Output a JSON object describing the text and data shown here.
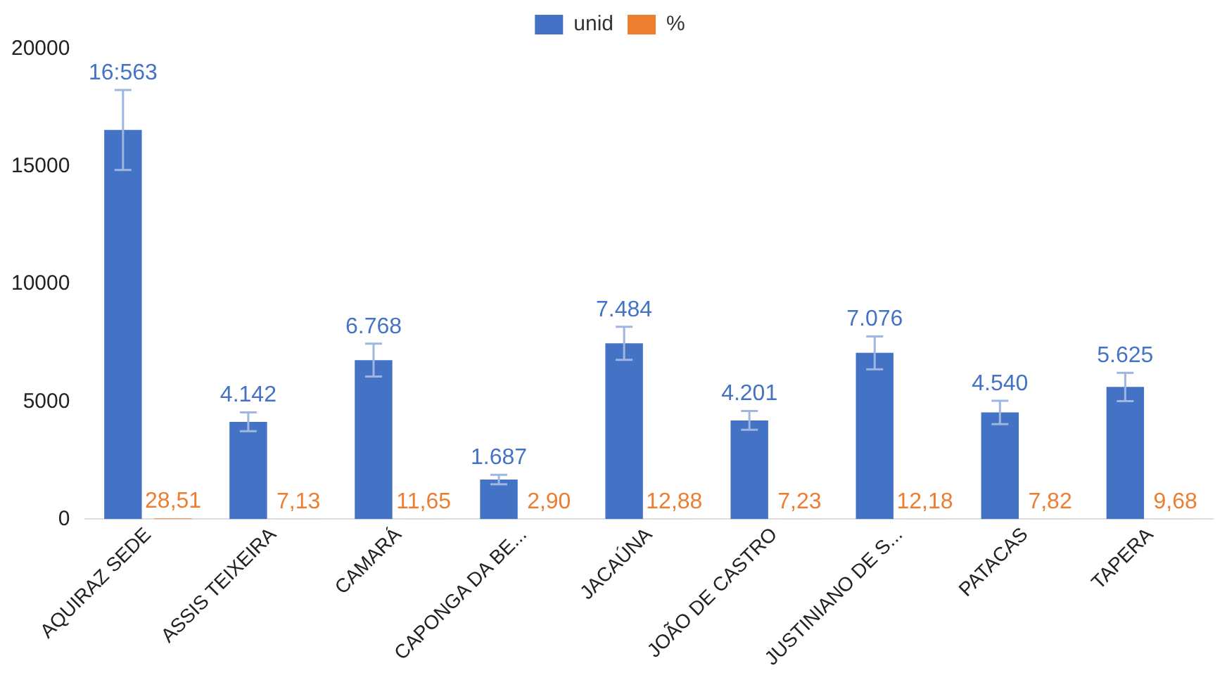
{
  "chart_data": {
    "type": "bar",
    "categories": [
      "AQUIRAZ SEDE",
      "ASSIS TEIXEIRA",
      "CAMARÁ",
      "CAPONGA DA BE...",
      "JACAÚNA",
      "JOÃO DE CASTRO",
      "JUSTINIANO DE S...",
      "PATACAS",
      "TAPERA"
    ],
    "series": [
      {
        "name": "unid",
        "color": "#4472c4",
        "values": [
          16563,
          4142,
          6768,
          1687,
          7484,
          4201,
          7076,
          4540,
          5625
        ],
        "errors": [
          1700,
          400,
          700,
          200,
          700,
          400,
          700,
          500,
          600
        ],
        "value_labels": [
          "16:563",
          "4.142",
          "6.768",
          "1.687",
          "7.484",
          "4.201",
          "7.076",
          "4.540",
          "5.625"
        ]
      },
      {
        "name": "%",
        "color": "#ed7d31",
        "values": [
          28.51,
          7.13,
          11.65,
          2.9,
          12.88,
          7.23,
          12.18,
          7.82,
          9.68
        ],
        "value_labels": [
          "28,51",
          "7,13",
          "11,65",
          "2,90",
          "12,88",
          "7,23",
          "12,18",
          "7,82",
          "9,68"
        ]
      }
    ],
    "ylim": [
      0,
      20000
    ],
    "yticks": [
      0,
      5000,
      10000,
      15000,
      20000
    ],
    "grid": false,
    "legend": "top"
  }
}
